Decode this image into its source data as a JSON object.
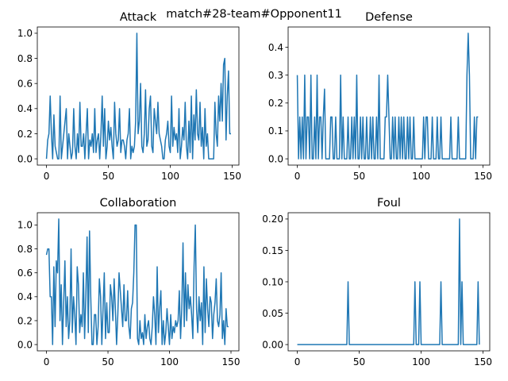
{
  "figure": {
    "suptitle": "match#28-team#Opponent11"
  },
  "colors": {
    "line": "#1f77b4",
    "axis": "#000000",
    "background": "#ffffff"
  },
  "chart_data": [
    {
      "type": "line",
      "title": "Attack",
      "xlabel": "",
      "ylabel": "",
      "xlim": [
        -7.4,
        155.4
      ],
      "ylim": [
        -0.05,
        1.05
      ],
      "xticks": [
        0,
        50,
        100,
        150
      ],
      "yticks": [
        0.0,
        0.2,
        0.4,
        0.6,
        0.8,
        1.0
      ],
      "ytick_labels": [
        "0.0",
        "0.2",
        "0.4",
        "0.6",
        "0.8",
        "1.0"
      ],
      "grid": false,
      "y": [
        0,
        0.15,
        0.2,
        0.5,
        0.2,
        0,
        0.35,
        0.1,
        0.05,
        0,
        0,
        0.5,
        0,
        0.1,
        0.2,
        0.3,
        0.4,
        0,
        0.2,
        0.1,
        0,
        0.05,
        0.4,
        0.1,
        0,
        0.2,
        0.05,
        0.45,
        0.1,
        0.1,
        0.2,
        0,
        0.2,
        0.4,
        0,
        0.15,
        0.1,
        0.2,
        0.05,
        0.4,
        0.05,
        0.15,
        0.2,
        0,
        0.2,
        0.5,
        0.1,
        0.4,
        0,
        0.1,
        0.3,
        0.15,
        0.25,
        0.1,
        0,
        0.45,
        0.2,
        0.1,
        0.15,
        0.4,
        0.05,
        0.15,
        0.15,
        0.1,
        0,
        0.15,
        0.2,
        0.4,
        0,
        0.1,
        0.05,
        0.1,
        0.3,
        1.0,
        0.2,
        0.3,
        0.6,
        0.1,
        0.05,
        0.2,
        0.55,
        0.1,
        0.15,
        0.4,
        0.5,
        0.1,
        0.05,
        0.4,
        0.3,
        0.2,
        0.45,
        0.2,
        0.15,
        0.1,
        0,
        0,
        0.15,
        0.2,
        0.3,
        0.1,
        0.05,
        0.5,
        0.1,
        0.25,
        0.15,
        0.2,
        0.05,
        0.4,
        0,
        0.1,
        0.25,
        0.15,
        0.45,
        0.1,
        0,
        0.3,
        0.05,
        0.5,
        0,
        0.35,
        0.15,
        0.55,
        0.2,
        0.15,
        0.45,
        0.1,
        0.25,
        0,
        0.4,
        0.1,
        0.2,
        0,
        0,
        0,
        0,
        0,
        0.45,
        0.2,
        0.1,
        0.5,
        0.3,
        0.6,
        0.3,
        0.75,
        0.8,
        0.15,
        0.5,
        0.7,
        0.2,
        0.2
      ]
    },
    {
      "type": "line",
      "title": "Defense",
      "xlabel": "",
      "ylabel": "",
      "xlim": [
        -7.4,
        155.4
      ],
      "ylim": [
        -0.0225,
        0.4725
      ],
      "xticks": [
        0,
        50,
        100,
        150
      ],
      "yticks": [
        0.0,
        0.1,
        0.2,
        0.3,
        0.4
      ],
      "ytick_labels": [
        "0.0",
        "0.1",
        "0.2",
        "0.3",
        "0.4"
      ],
      "grid": false,
      "y": [
        0.3,
        0,
        0.15,
        0,
        0.15,
        0,
        0.3,
        0,
        0.15,
        0.15,
        0,
        0.3,
        0,
        0,
        0.15,
        0,
        0.3,
        0,
        0.15,
        0.15,
        0,
        0.15,
        0.25,
        0,
        0,
        0,
        0,
        0.15,
        0.15,
        0,
        0,
        0.15,
        0,
        0,
        0,
        0.3,
        0,
        0.15,
        0,
        0,
        0,
        0.15,
        0,
        0,
        0.15,
        0,
        0.15,
        0,
        0.3,
        0,
        0,
        0.15,
        0,
        0.15,
        0,
        0,
        0.15,
        0,
        0,
        0.15,
        0,
        0.15,
        0,
        0,
        0.15,
        0,
        0.3,
        0,
        0,
        0,
        0,
        0.15,
        0.15,
        0.3,
        0.15,
        0,
        0,
        0.15,
        0,
        0.15,
        0,
        0,
        0.15,
        0,
        0.15,
        0,
        0.15,
        0,
        0,
        0.15,
        0,
        0.15,
        0,
        0,
        0.15,
        0,
        0,
        0,
        0,
        0,
        0,
        0,
        0.15,
        0,
        0.15,
        0.15,
        0,
        0,
        0,
        0.15,
        0,
        0,
        0,
        0.15,
        0,
        0,
        0.15,
        0,
        0,
        0,
        0,
        0,
        0,
        0,
        0.15,
        0,
        0,
        0,
        0,
        0,
        0.15,
        0,
        0,
        0,
        0,
        0,
        0,
        0.3,
        0.45,
        0.3,
        0,
        0,
        0,
        0.15,
        0,
        0.15,
        0.15
      ]
    },
    {
      "type": "line",
      "title": "Collaboration",
      "xlabel": "",
      "ylabel": "",
      "xlim": [
        -7.45,
        156.45
      ],
      "ylim": [
        -0.0525,
        1.1025
      ],
      "xticks": [
        0,
        50,
        100,
        150
      ],
      "yticks": [
        0.0,
        0.2,
        0.4,
        0.6,
        0.8,
        1.0
      ],
      "ytick_labels": [
        "0.0",
        "0.2",
        "0.4",
        "0.6",
        "0.8",
        "1.0"
      ],
      "grid": false,
      "y": [
        0.75,
        0.8,
        0.8,
        0.4,
        0.4,
        0,
        0.65,
        0.15,
        0.7,
        0.6,
        1.05,
        0.2,
        0.5,
        0,
        0.35,
        0.7,
        0.15,
        0.4,
        0.05,
        0.2,
        0.8,
        0.1,
        0.4,
        0.25,
        0,
        0.65,
        0.5,
        0.1,
        0.25,
        0.15,
        0.6,
        0.05,
        0.4,
        0.9,
        0.1,
        0.95,
        0.4,
        0,
        0,
        0.25,
        0.25,
        0,
        0.15,
        0.55,
        0.4,
        0,
        0.3,
        0.6,
        0.05,
        0.35,
        0.1,
        0.1,
        0.5,
        0.4,
        0.2,
        0.55,
        0.3,
        0,
        0.25,
        0.6,
        0.45,
        0.3,
        0.15,
        0.5,
        0.2,
        0.2,
        0.45,
        0.15,
        0.05,
        0.3,
        0.35,
        0.6,
        1.0,
        1.0,
        0.05,
        0,
        0.2,
        0.05,
        0.1,
        0,
        0.25,
        0.05,
        0.15,
        0.2,
        0.05,
        0,
        0.15,
        0.4,
        0.25,
        0,
        0.65,
        0.1,
        0.3,
        0.45,
        0,
        0.2,
        0,
        0.1,
        0.3,
        0.15,
        0,
        0.25,
        0.05,
        0.15,
        0.1,
        0.2,
        0.15,
        0.2,
        0.45,
        0.05,
        0.3,
        0.85,
        0.15,
        0.6,
        0.2,
        0.5,
        0.3,
        0.4,
        0.25,
        0.05,
        0.65,
        1.0,
        0.3,
        0.1,
        0.4,
        0.2,
        0.35,
        0,
        0.65,
        0.1,
        0.55,
        0.3,
        0.15,
        0.4,
        0.35,
        0.05,
        0.25,
        0.35,
        0.55,
        0.2,
        0.15,
        0.25,
        0.6,
        0.05,
        0.2,
        0,
        0.3,
        0.15,
        0.15
      ]
    },
    {
      "type": "line",
      "title": "Foul",
      "xlabel": "",
      "ylabel": "",
      "xlim": [
        -7.4,
        155.4
      ],
      "ylim": [
        -0.01,
        0.21
      ],
      "xticks": [
        0,
        50,
        100,
        150
      ],
      "yticks": [
        0.0,
        0.05,
        0.1,
        0.15,
        0.2
      ],
      "ytick_labels": [
        "0.00",
        "0.05",
        "0.10",
        "0.15",
        "0.20"
      ],
      "grid": false,
      "y": [
        0,
        0,
        0,
        0,
        0,
        0,
        0,
        0,
        0,
        0,
        0,
        0,
        0,
        0,
        0,
        0,
        0,
        0,
        0,
        0,
        0,
        0,
        0,
        0,
        0,
        0,
        0,
        0,
        0,
        0,
        0,
        0,
        0,
        0,
        0,
        0,
        0,
        0,
        0,
        0,
        0,
        0.1,
        0,
        0,
        0,
        0,
        0,
        0,
        0,
        0,
        0,
        0,
        0,
        0,
        0,
        0,
        0,
        0,
        0,
        0,
        0,
        0,
        0,
        0,
        0,
        0,
        0,
        0,
        0,
        0,
        0,
        0,
        0,
        0,
        0,
        0,
        0,
        0,
        0,
        0,
        0,
        0,
        0,
        0,
        0,
        0,
        0,
        0,
        0,
        0,
        0,
        0,
        0,
        0,
        0,
        0.1,
        0,
        0,
        0,
        0.1,
        0,
        0,
        0,
        0,
        0,
        0,
        0,
        0,
        0,
        0,
        0,
        0,
        0,
        0,
        0,
        0,
        0.1,
        0,
        0,
        0,
        0,
        0,
        0,
        0,
        0,
        0,
        0,
        0,
        0,
        0,
        0,
        0.2,
        0,
        0.1,
        0,
        0,
        0,
        0,
        0,
        0,
        0,
        0,
        0,
        0,
        0,
        0,
        0.1,
        0
      ]
    }
  ]
}
